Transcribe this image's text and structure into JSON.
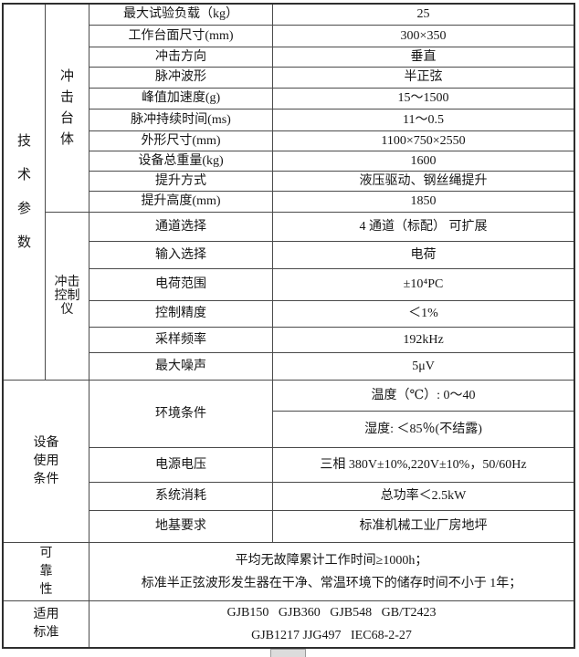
{
  "sections": {
    "tech_params": "技术参数",
    "impact_body": "冲击台体",
    "controller": "冲击控制仪",
    "usage": "设备使用条件",
    "reliability": "可靠性",
    "standards": "适用标准"
  },
  "body_rows": [
    {
      "label": "最大试验负载（kg）",
      "value": "25"
    },
    {
      "label": "工作台面尺寸(mm)",
      "value": "300×350"
    },
    {
      "label": "冲击方向",
      "value": "垂直"
    },
    {
      "label": "脉冲波形",
      "value": "半正弦"
    },
    {
      "label": "峰值加速度(g)",
      "value": "15～1500"
    },
    {
      "label": "脉冲持续时间(ms)",
      "value": "11～0.5"
    },
    {
      "label": "外形尺寸(mm)",
      "value": "1100×750×2550"
    },
    {
      "label": "设备总重量(kg)",
      "value": "1600"
    },
    {
      "label": "提升方式",
      "value": "液压驱动、钢丝绳提升"
    },
    {
      "label": "提升高度(mm)",
      "value": "1850"
    }
  ],
  "controller_rows": [
    {
      "label": "通道选择",
      "value": "4 通道（标配）  可扩展"
    },
    {
      "label": "输入选择",
      "value": "电荷"
    },
    {
      "label": "电荷范围",
      "value": "±10⁴PC"
    },
    {
      "label": "控制精度",
      "value": "＜1%"
    },
    {
      "label": "采样频率",
      "value": "192kHz"
    },
    {
      "label": "最大噪声",
      "value": "5μV"
    }
  ],
  "usage_rows": {
    "environment": {
      "label": "环境条件",
      "temperature": "温度（℃）: 0～40",
      "humidity": "湿度: ＜85％(不结露)"
    },
    "power": {
      "label": "电源电压",
      "value": "三相 380V±10%,220V±10%，50/60Hz"
    },
    "consumption": {
      "label": "系统消耗",
      "value": "总功率＜2.5kW"
    },
    "foundation": {
      "label": "地基要求",
      "value": "标准机械工业厂房地坪"
    }
  },
  "reliability": {
    "line1": "平均无故障累计工作时间≥1000h；",
    "line2": "标准半正弦波形发生器在干净、常温环境下的储存时间不小于 1年；"
  },
  "standards": {
    "line1": "GJB150   GJB360   GJB548   GB/T2423",
    "line2": "GJB1217 JJG497   IEC68-2-27"
  }
}
